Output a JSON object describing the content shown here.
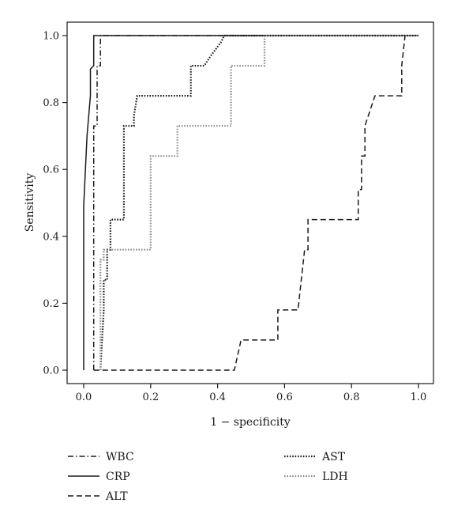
{
  "chart_data": {
    "type": "line",
    "title": "",
    "xlabel": "1 − specificity",
    "ylabel": "Sensitivity",
    "xlim": [
      0,
      1
    ],
    "ylim": [
      0,
      1
    ],
    "xticks": [
      "0.0",
      "0.2",
      "0.4",
      "0.6",
      "0.8",
      "1.0"
    ],
    "yticks": [
      "0.0",
      "0.2",
      "0.4",
      "0.6",
      "0.8",
      "1.0"
    ],
    "grid": false,
    "legend_position": "below plot",
    "series": [
      {
        "name": "WBC",
        "line_style": "dashdot",
        "color": "#1a1a1a",
        "x": [
          0.03,
          0.03,
          0.04,
          0.04,
          0.05,
          0.05,
          1.0
        ],
        "y": [
          0.0,
          0.73,
          0.73,
          0.91,
          0.91,
          1.0,
          1.0
        ]
      },
      {
        "name": "CRP",
        "line_style": "solid",
        "color": "#1a1a1a",
        "x": [
          0.0,
          0.0,
          0.01,
          0.02,
          0.02,
          0.03,
          0.03,
          1.0
        ],
        "y": [
          0.0,
          0.49,
          0.7,
          0.82,
          0.9,
          0.91,
          1.0,
          1.0
        ]
      },
      {
        "name": "ALT",
        "line_style": "dashed",
        "color": "#1a1a1a",
        "x": [
          0.03,
          0.45,
          0.47,
          0.47,
          0.57,
          0.58,
          0.58,
          0.64,
          0.65,
          0.66,
          0.66,
          0.67,
          0.67,
          0.68,
          0.68,
          0.82,
          0.82,
          0.83,
          0.83,
          0.84,
          0.84,
          0.85,
          0.87,
          0.87,
          0.95,
          0.95,
          0.96,
          1.0
        ],
        "y": [
          0.0,
          0.0,
          0.09,
          0.09,
          0.09,
          0.09,
          0.18,
          0.18,
          0.27,
          0.36,
          0.36,
          0.36,
          0.45,
          0.45,
          0.45,
          0.45,
          0.54,
          0.54,
          0.64,
          0.64,
          0.73,
          0.76,
          0.82,
          0.82,
          0.82,
          0.91,
          1.0,
          1.0
        ]
      },
      {
        "name": "AST",
        "line_style": "dotted",
        "color": "#1a1a1a",
        "x": [
          0.05,
          0.06,
          0.06,
          0.07,
          0.07,
          0.08,
          0.08,
          0.08,
          0.12,
          0.12,
          0.13,
          0.13,
          0.15,
          0.15,
          0.16,
          0.16,
          0.32,
          0.32,
          0.36,
          0.36,
          0.38,
          0.41,
          0.42,
          1.0
        ],
        "y": [
          0.0,
          0.18,
          0.27,
          0.27,
          0.36,
          0.36,
          0.45,
          0.45,
          0.45,
          0.73,
          0.73,
          0.73,
          0.73,
          0.76,
          0.82,
          0.82,
          0.82,
          0.91,
          0.91,
          0.91,
          0.94,
          0.98,
          1.0,
          1.0
        ]
      },
      {
        "name": "LDH",
        "line_style": "dotted",
        "color": "#8c8c8c",
        "x": [
          0.05,
          0.05,
          0.06,
          0.06,
          0.2,
          0.2,
          0.28,
          0.28,
          0.44,
          0.44,
          0.54,
          0.54,
          1.0
        ],
        "y": [
          0.0,
          0.33,
          0.33,
          0.36,
          0.36,
          0.64,
          0.64,
          0.73,
          0.73,
          0.91,
          0.91,
          1.0,
          1.0
        ]
      }
    ]
  }
}
